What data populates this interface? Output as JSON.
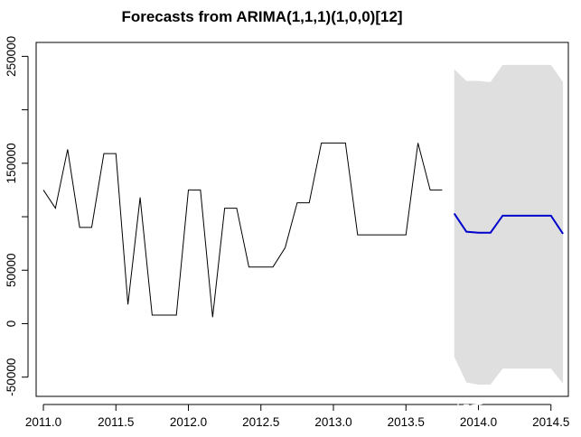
{
  "chart_data": {
    "type": "line",
    "title": "Forecasts from ARIMA(1,1,1)(1,0,0)[12]",
    "xlabel": "",
    "ylabel": "",
    "xlim": [
      2010.95,
      2014.62
    ],
    "ylim": [
      -68000,
      263000
    ],
    "x_ticks": [
      2011.0,
      2011.5,
      2012.0,
      2012.5,
      2013.0,
      2013.5,
      2014.0,
      2014.5
    ],
    "x_tick_labels": [
      "2011.0",
      "2011.5",
      "2012.0",
      "2012.5",
      "2013.0",
      "2013.5",
      "2014.0",
      "2014.5"
    ],
    "y_ticks": [
      -50000,
      0,
      50000,
      100000,
      150000,
      200000,
      250000
    ],
    "y_tick_labels": [
      "-50000",
      "0",
      "50000",
      "",
      "150000",
      "",
      "250000"
    ],
    "grid": false,
    "series": [
      {
        "role": "observed",
        "color": "#000000",
        "x": [
          2011.0,
          2011.083,
          2011.167,
          2011.25,
          2011.333,
          2011.417,
          2011.5,
          2011.583,
          2011.667,
          2011.75,
          2011.833,
          2011.917,
          2012.0,
          2012.083,
          2012.167,
          2012.25,
          2012.333,
          2012.417,
          2012.5,
          2012.583,
          2012.667,
          2012.75,
          2012.833,
          2012.917,
          2013.0,
          2013.083,
          2013.167,
          2013.25,
          2013.333,
          2013.417,
          2013.5,
          2013.583,
          2013.667,
          2013.75
        ],
        "values": [
          125000,
          108000,
          163000,
          90000,
          90000,
          159000,
          159000,
          18000,
          118000,
          8000,
          8000,
          8000,
          125000,
          125000,
          6000,
          108000,
          108000,
          53000,
          53000,
          53000,
          71000,
          113000,
          113000,
          169000,
          169000,
          169000,
          83000,
          83000,
          83000,
          83000,
          83000,
          169000,
          125000,
          125000
        ]
      },
      {
        "role": "forecast",
        "color": "#0000cc",
        "x": [
          2013.833,
          2013.917,
          2014.0,
          2014.083,
          2014.167,
          2014.25,
          2014.333,
          2014.417,
          2014.5,
          2014.583
        ],
        "values": [
          103000,
          86000,
          85000,
          85000,
          101000,
          101000,
          101000,
          101000,
          101000,
          84000
        ]
      }
    ],
    "band": {
      "role": "prediction-interval",
      "color": "#dfdfdf",
      "x": [
        2013.833,
        2013.917,
        2014.0,
        2014.083,
        2014.167,
        2014.25,
        2014.333,
        2014.417,
        2014.5,
        2014.583
      ],
      "upper": [
        238000,
        227000,
        227000,
        226000,
        242000,
        242000,
        242000,
        242000,
        242000,
        226000
      ],
      "lower": [
        -31000,
        -55000,
        -57000,
        -57000,
        -42000,
        -42000,
        -42000,
        -42000,
        -42000,
        -56000
      ]
    }
  },
  "watermark": "知乎 @0100"
}
